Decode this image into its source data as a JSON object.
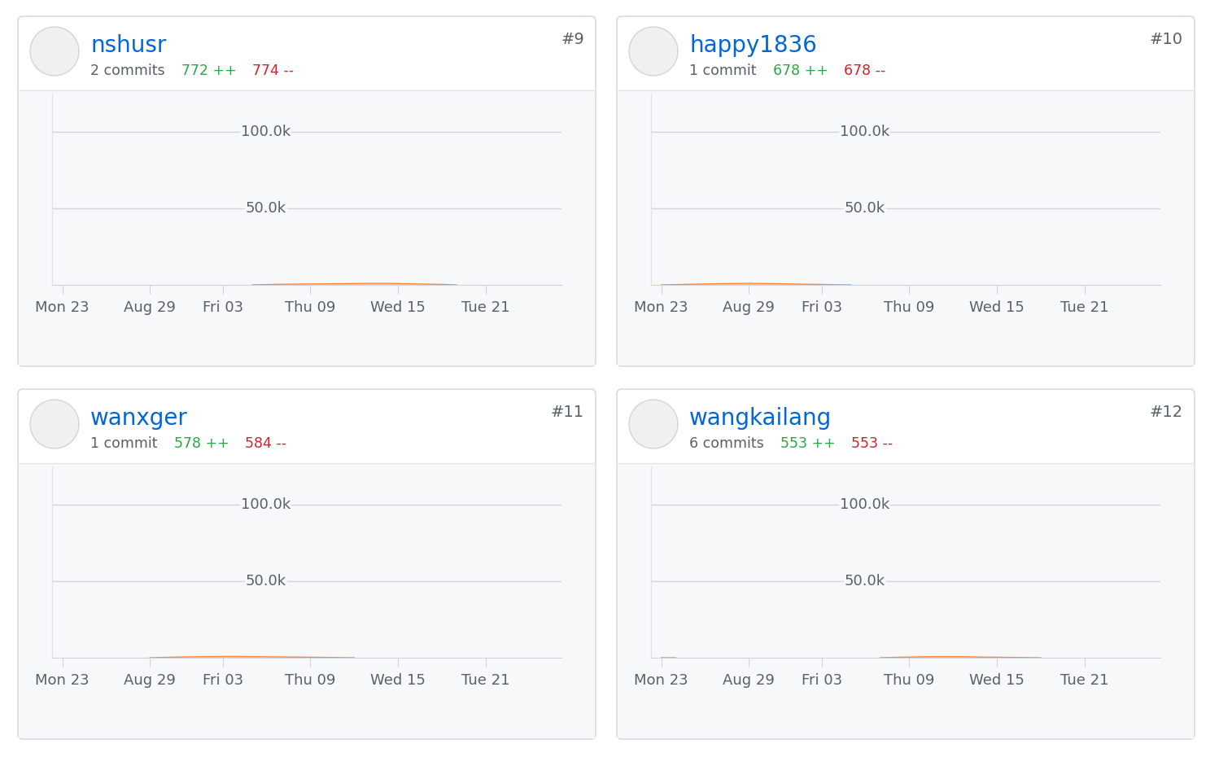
{
  "chart_data": [
    {
      "type": "area",
      "title": "nshusr",
      "commits": "2 commits",
      "additions": "772 ++",
      "deletions": "774 --",
      "rank": "#9",
      "categories": [
        "Mon 23",
        null,
        null,
        null,
        null,
        null,
        "Aug 29",
        null,
        null,
        null,
        null,
        "Fri 03",
        null,
        null,
        null,
        null,
        null,
        "Thu 09",
        null,
        null,
        null,
        null,
        null,
        "Wed 15",
        null,
        null,
        null,
        null,
        null,
        "Tue 21",
        null,
        null,
        null,
        null,
        null
      ],
      "values": [
        null,
        null,
        null,
        null,
        null,
        null,
        null,
        null,
        null,
        null,
        null,
        null,
        null,
        0,
        200,
        400,
        500,
        600,
        700,
        800,
        900,
        1000,
        1000,
        900,
        700,
        500,
        300,
        0,
        null,
        null,
        null,
        null,
        null,
        null,
        null
      ],
      "color": "#fb8532",
      "ylim": [
        0,
        125000
      ],
      "yticks": [
        {
          "value": 50000,
          "label": "50.0k"
        },
        {
          "value": 100000,
          "label": "100.0k"
        }
      ],
      "grid": true
    },
    {
      "type": "area",
      "title": "happy1836",
      "commits": "1 commit",
      "additions": "678 ++",
      "deletions": "678 --",
      "rank": "#10",
      "categories": [
        "Mon 23",
        null,
        null,
        null,
        null,
        null,
        "Aug 29",
        null,
        null,
        null,
        null,
        "Fri 03",
        null,
        null,
        null,
        null,
        null,
        "Thu 09",
        null,
        null,
        null,
        null,
        null,
        "Wed 15",
        null,
        null,
        null,
        null,
        null,
        "Tue 21",
        null,
        null,
        null,
        null,
        null
      ],
      "values": [
        0,
        200,
        400,
        600,
        800,
        900,
        1000,
        900,
        800,
        600,
        400,
        300,
        100,
        0,
        null,
        null,
        null,
        null,
        null,
        null,
        null,
        null,
        null,
        null,
        null,
        null,
        null,
        null,
        null,
        null,
        null,
        null,
        null,
        null,
        null
      ],
      "color": "#fb8532",
      "ylim": [
        0,
        125000
      ],
      "yticks": [
        {
          "value": 50000,
          "label": "50.0k"
        },
        {
          "value": 100000,
          "label": "100.0k"
        }
      ],
      "grid": true
    },
    {
      "type": "area",
      "title": "wanxger",
      "commits": "1 commit",
      "additions": "578 ++",
      "deletions": "584 --",
      "rank": "#11",
      "categories": [
        "Mon 23",
        null,
        null,
        null,
        null,
        null,
        "Aug 29",
        null,
        null,
        null,
        null,
        "Fri 03",
        null,
        null,
        null,
        null,
        null,
        "Thu 09",
        null,
        null,
        null,
        null,
        null,
        "Wed 15",
        null,
        null,
        null,
        null,
        null,
        "Tue 21",
        null,
        null,
        null,
        null,
        null
      ],
      "values": [
        null,
        null,
        null,
        null,
        null,
        null,
        0,
        200,
        400,
        600,
        700,
        800,
        800,
        700,
        600,
        500,
        400,
        300,
        200,
        100,
        0,
        null,
        null,
        null,
        null,
        null,
        null,
        null,
        null,
        null,
        null,
        null,
        null,
        null,
        null
      ],
      "color": "#fb8532",
      "ylim": [
        0,
        125000
      ],
      "yticks": [
        {
          "value": 50000,
          "label": "50.0k"
        },
        {
          "value": 100000,
          "label": "100.0k"
        }
      ],
      "grid": true
    },
    {
      "type": "area",
      "title": "wangkailang",
      "commits": "6 commits",
      "additions": "553 ++",
      "deletions": "553 --",
      "rank": "#12",
      "categories": [
        "Mon 23",
        null,
        null,
        null,
        null,
        null,
        "Aug 29",
        null,
        null,
        null,
        null,
        "Fri 03",
        null,
        null,
        null,
        null,
        null,
        "Thu 09",
        null,
        null,
        null,
        null,
        null,
        "Wed 15",
        null,
        null,
        null,
        null,
        null,
        "Tue 21",
        null,
        null,
        null,
        null,
        null
      ],
      "values": [
        0,
        0,
        null,
        null,
        null,
        null,
        null,
        null,
        null,
        null,
        null,
        null,
        null,
        null,
        null,
        0,
        200,
        400,
        600,
        700,
        700,
        600,
        400,
        300,
        200,
        100,
        0,
        null,
        null,
        null,
        null,
        null,
        null,
        null,
        null
      ],
      "color": "#fb8532",
      "ylim": [
        0,
        125000
      ],
      "yticks": [
        {
          "value": 50000,
          "label": "50.0k"
        },
        {
          "value": 100000,
          "label": "100.0k"
        }
      ],
      "grid": true
    }
  ]
}
